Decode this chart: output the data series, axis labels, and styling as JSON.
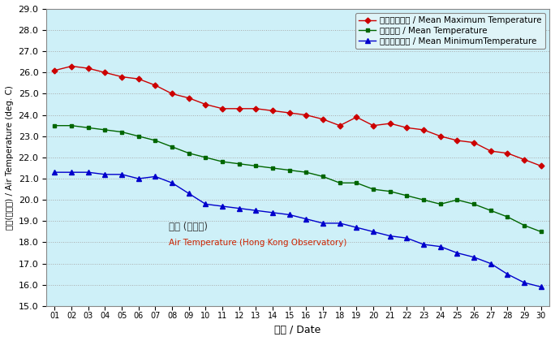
{
  "days": [
    1,
    2,
    3,
    4,
    5,
    6,
    7,
    8,
    9,
    10,
    11,
    12,
    13,
    14,
    15,
    16,
    17,
    18,
    19,
    20,
    21,
    22,
    23,
    24,
    25,
    26,
    27,
    28,
    29,
    30
  ],
  "mean_max": [
    26.1,
    26.3,
    26.2,
    26.0,
    25.8,
    25.7,
    25.4,
    25.0,
    24.8,
    24.5,
    24.3,
    24.3,
    24.3,
    24.2,
    24.1,
    24.0,
    23.8,
    23.5,
    23.9,
    23.5,
    23.6,
    23.4,
    23.3,
    23.0,
    22.8,
    22.7,
    22.3,
    22.2,
    21.9,
    21.6
  ],
  "mean_temp": [
    23.5,
    23.5,
    23.4,
    23.3,
    23.2,
    23.0,
    22.8,
    22.5,
    22.2,
    22.0,
    21.8,
    21.7,
    21.6,
    21.5,
    21.4,
    21.3,
    21.1,
    20.8,
    20.8,
    20.5,
    20.4,
    20.2,
    20.0,
    19.8,
    20.0,
    19.8,
    19.5,
    19.2,
    18.8,
    18.5
  ],
  "mean_min": [
    21.3,
    21.3,
    21.3,
    21.2,
    21.2,
    21.0,
    21.1,
    20.8,
    20.3,
    19.8,
    19.7,
    19.6,
    19.5,
    19.4,
    19.3,
    19.1,
    18.9,
    18.9,
    18.7,
    18.5,
    18.3,
    18.2,
    17.9,
    17.8,
    17.5,
    17.3,
    17.0,
    16.5,
    16.1,
    15.9
  ],
  "color_max": "#cc0000",
  "color_mean": "#006600",
  "color_min": "#0000cc",
  "label_max": "平均最高氣溫 / Mean Maximum Temperature",
  "label_mean": "平均氣溫 / Mean Temperature",
  "label_min": "平均最低氣溫 / Mean MinimumTemperature",
  "ylabel_chinese": "氣溫(攝氏度) / Air Temperature (deg. C)",
  "xlabel": "日期 / Date",
  "annotation_cn": "氣溫 (天文台)",
  "annotation_en": "Air Temperature (Hong Kong Observatory)",
  "ylim_min": 15.0,
  "ylim_max": 29.0,
  "yticks": [
    15.0,
    16.0,
    17.0,
    18.0,
    19.0,
    20.0,
    21.0,
    22.0,
    23.0,
    24.0,
    25.0,
    26.0,
    27.0,
    28.0,
    29.0
  ],
  "bg_color": "#cef0f8",
  "fig_bg": "#ffffff",
  "legend_bg": "#dff4f8",
  "annotation_cn_color": "#333333",
  "annotation_en_color": "#cc2200"
}
